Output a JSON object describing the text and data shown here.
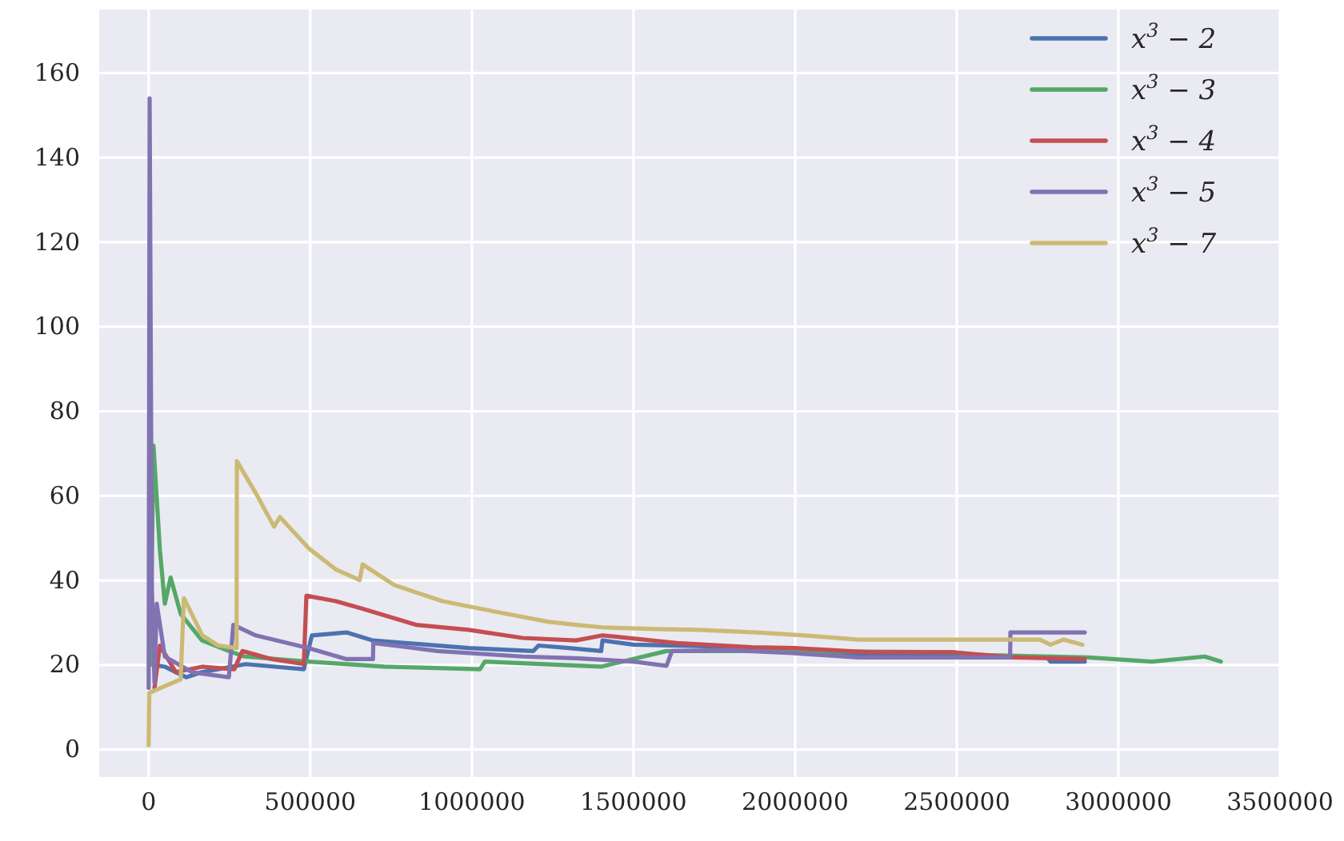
{
  "chart_data": {
    "type": "line",
    "xlim": [
      -153000,
      3500000
    ],
    "ylim": [
      -6.5,
      175
    ],
    "xticks": [
      0,
      500000,
      1000000,
      1500000,
      2000000,
      2500000,
      3000000,
      3500000
    ],
    "yticks": [
      0,
      20,
      40,
      60,
      80,
      100,
      120,
      140,
      160
    ],
    "grid": true,
    "legend": "top right",
    "marker": "none",
    "line_style": "solid",
    "series": [
      {
        "name": "x$^{3}$ − 2",
        "color": "#4c72b0",
        "x": [
          15000,
          50000,
          116000,
          165000,
          300000,
          480000,
          505000,
          612000,
          694000,
          990000,
          1190000,
          1206000,
          1300000,
          1400000,
          1404000,
          1500000,
          1700000,
          2178000,
          2780000,
          2790000,
          2896000
        ],
        "values": [
          20,
          19.6,
          17.1,
          18.3,
          20.2,
          19,
          27,
          27.7,
          25.8,
          24,
          23.3,
          24.6,
          24,
          23.3,
          25.8,
          24.8,
          24.5,
          22.7,
          21.8,
          20.8,
          20.8
        ]
      },
      {
        "name": "x$^{3}$ − 3",
        "color": "#55a868",
        "x": [
          5000,
          15000,
          35000,
          50000,
          68000,
          99000,
          165000,
          248000,
          297000,
          495000,
          728000,
          1025000,
          1040000,
          1400000,
          1602000,
          2000000,
          2493000,
          2550000,
          2906000,
          3104000,
          3267000,
          3317000
        ],
        "values": [
          20,
          71.9,
          47,
          34.5,
          40.7,
          32.1,
          25.8,
          23.3,
          22,
          20.8,
          19.6,
          19,
          20.8,
          19.6,
          23.3,
          23.3,
          23,
          22.4,
          21.8,
          20.8,
          22,
          20.8
        ]
      },
      {
        "name": "x$^{3}$ − 4",
        "color": "#c44e52",
        "x": [
          18000,
          35000,
          84000,
          166000,
          265000,
          290000,
          381000,
          480000,
          488000,
          579000,
          662000,
          827000,
          990000,
          1157000,
          1322000,
          1404000,
          1634000,
          1866000,
          2000000,
          2228000,
          2493000,
          2673000,
          2896000
        ],
        "values": [
          14.6,
          24.6,
          18.3,
          19.6,
          19,
          23.3,
          21.4,
          20.2,
          36.4,
          35.1,
          33.3,
          29.5,
          28.3,
          26.4,
          25.8,
          27,
          25.2,
          24.2,
          24,
          23,
          23,
          21.8,
          21.4
        ]
      },
      {
        "name": "x$^{3}$ − 5",
        "color": "#8172b2",
        "x": [
          0,
          3000,
          10000,
          18000,
          25000,
          50000,
          134000,
          248000,
          262000,
          331000,
          495000,
          612000,
          694000,
          695000,
          894000,
          1157000,
          1322000,
          1500000,
          1602000,
          1619000,
          1800000,
          1990000,
          2196000,
          2665000,
          2666000,
          2896000
        ],
        "values": [
          14.6,
          154,
          38.2,
          15.8,
          34.5,
          22,
          18.3,
          17.1,
          29.5,
          27,
          24,
          21.4,
          21.4,
          25.2,
          23.3,
          22,
          21.6,
          20.8,
          19.8,
          23.3,
          23.5,
          22.8,
          21.8,
          21.8,
          27.7,
          27.7
        ]
      },
      {
        "name": "x$^{3}$ − 7",
        "color": "#ccb974",
        "x": [
          0,
          2000,
          35000,
          99000,
          109000,
          166000,
          215000,
          272000,
          273000,
          331000,
          388000,
          406000,
          495000,
          579000,
          653000,
          662000,
          760000,
          909000,
          1074000,
          1238000,
          1322000,
          1404000,
          1569000,
          1700000,
          1881000,
          2030000,
          2196000,
          2757000,
          2790000,
          2830000,
          2889000
        ],
        "values": [
          1,
          13.4,
          14.5,
          16.6,
          35.8,
          27,
          24.6,
          24,
          68.2,
          60.7,
          52.7,
          55,
          47.6,
          42.6,
          40.1,
          43.8,
          38.9,
          35.1,
          32.6,
          30.2,
          29.5,
          28.9,
          28.5,
          28.3,
          27.7,
          27,
          26,
          26,
          24.8,
          26,
          24.8
        ]
      }
    ]
  }
}
